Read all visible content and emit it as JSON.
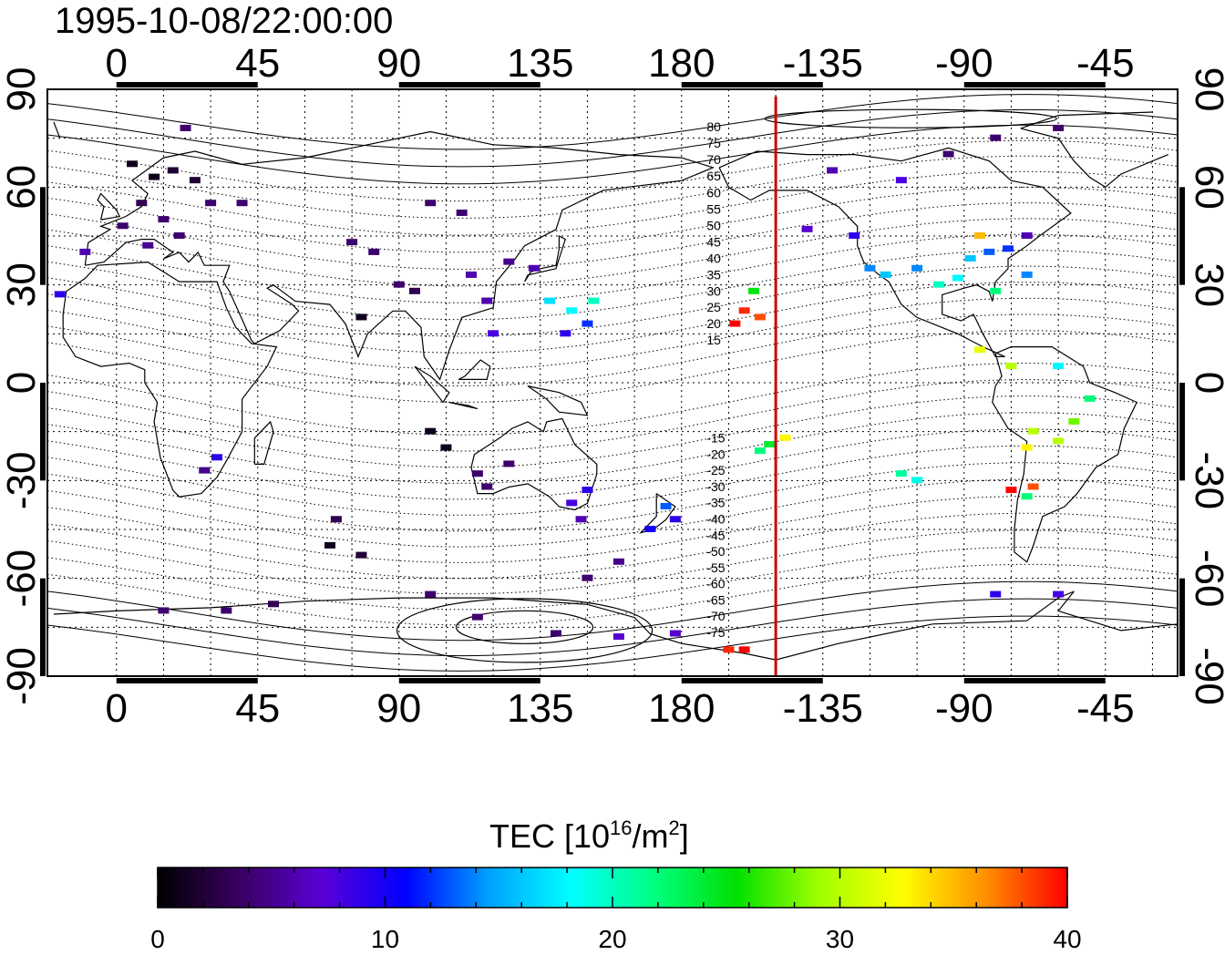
{
  "title": "1995-10-08/22:00:00",
  "axes": {
    "x_tick_labels": [
      "0",
      "45",
      "90",
      "135",
      "180",
      "-135",
      "-90",
      "-45"
    ],
    "y_tick_labels": [
      "90",
      "60",
      "30",
      "0",
      "-30",
      "-60",
      "-90"
    ],
    "lon_range": [
      -22,
      338
    ],
    "lat_range": [
      -90,
      90
    ],
    "grid": true
  },
  "magnetic_latitude_labels": [
    "80",
    "75",
    "70",
    "65",
    "60",
    "55",
    "50",
    "45",
    "40",
    "35",
    "30",
    "25",
    "20",
    "15",
    "-15",
    "-20",
    "-25",
    "-30",
    "-35",
    "-40",
    "-45",
    "-50",
    "-55",
    "-60",
    "-65",
    "-70",
    "-75"
  ],
  "colorbar": {
    "title_main": "TEC  [10",
    "title_sup1": "16",
    "title_mid": "/m",
    "title_sup2": "2",
    "title_end": "]",
    "tick_labels": [
      "0",
      "10",
      "20",
      "30",
      "40"
    ],
    "range": [
      0,
      40
    ],
    "colors": [
      "#000000",
      "#3a0062",
      "#5a00d8",
      "#0000ff",
      "#00a0ff",
      "#00ffff",
      "#00ff80",
      "#00e000",
      "#a0ff00",
      "#ffff00",
      "#ff9000",
      "#ff0000"
    ]
  },
  "marker": {
    "name": "midnight-meridian-line",
    "color": "#cc0000",
    "lon": 210
  },
  "chart_data": {
    "type": "scatter",
    "title": "1995-10-08/22:00:00",
    "xlabel": "",
    "ylabel": "",
    "xlim": [
      -22,
      338
    ],
    "ylim": [
      -90,
      90
    ],
    "points": [
      {
        "lon": 5,
        "lat": 67,
        "tec": 1
      },
      {
        "lon": 12,
        "lat": 63,
        "tec": 1
      },
      {
        "lon": 18,
        "lat": 65,
        "tec": 2
      },
      {
        "lon": 25,
        "lat": 62,
        "tec": 2
      },
      {
        "lon": 8,
        "lat": 55,
        "tec": 3
      },
      {
        "lon": 15,
        "lat": 50,
        "tec": 4
      },
      {
        "lon": 2,
        "lat": 48,
        "tec": 4
      },
      {
        "lon": 20,
        "lat": 45,
        "tec": 4
      },
      {
        "lon": -10,
        "lat": 40,
        "tec": 6
      },
      {
        "lon": 10,
        "lat": 42,
        "tec": 5
      },
      {
        "lon": 30,
        "lat": 55,
        "tec": 4
      },
      {
        "lon": 40,
        "lat": 55,
        "tec": 4
      },
      {
        "lon": 22,
        "lat": 78,
        "tec": 4
      },
      {
        "lon": -18,
        "lat": 27,
        "tec": 9
      },
      {
        "lon": 75,
        "lat": 43,
        "tec": 4
      },
      {
        "lon": 82,
        "lat": 40,
        "tec": 4
      },
      {
        "lon": 90,
        "lat": 30,
        "tec": 4
      },
      {
        "lon": 78,
        "lat": 20,
        "tec": 1
      },
      {
        "lon": 100,
        "lat": 55,
        "tec": 4
      },
      {
        "lon": 110,
        "lat": 52,
        "tec": 4
      },
      {
        "lon": 125,
        "lat": 37,
        "tec": 5
      },
      {
        "lon": 133,
        "lat": 35,
        "tec": 6
      },
      {
        "lon": 118,
        "lat": 25,
        "tec": 6
      },
      {
        "lon": 120,
        "lat": 15,
        "tec": 8
      },
      {
        "lon": 138,
        "lat": 25,
        "tec": 17
      },
      {
        "lon": 145,
        "lat": 22,
        "tec": 18
      },
      {
        "lon": 152,
        "lat": 25,
        "tec": 20
      },
      {
        "lon": 143,
        "lat": 15,
        "tec": 9
      },
      {
        "lon": 150,
        "lat": 18,
        "tec": 12
      },
      {
        "lon": 113,
        "lat": 33,
        "tec": 6
      },
      {
        "lon": 95,
        "lat": 28,
        "tec": 3
      },
      {
        "lon": 100,
        "lat": -15,
        "tec": 1
      },
      {
        "lon": 105,
        "lat": -20,
        "tec": 1
      },
      {
        "lon": 115,
        "lat": -28,
        "tec": 4
      },
      {
        "lon": 118,
        "lat": -32,
        "tec": 4
      },
      {
        "lon": 125,
        "lat": -25,
        "tec": 4
      },
      {
        "lon": 145,
        "lat": -37,
        "tec": 8
      },
      {
        "lon": 150,
        "lat": -33,
        "tec": 9
      },
      {
        "lon": 148,
        "lat": -42,
        "tec": 6
      },
      {
        "lon": 175,
        "lat": -38,
        "tec": 13
      },
      {
        "lon": 170,
        "lat": -45,
        "tec": 10
      },
      {
        "lon": 178,
        "lat": -42,
        "tec": 9
      },
      {
        "lon": 160,
        "lat": -55,
        "tec": 5
      },
      {
        "lon": 150,
        "lat": -60,
        "tec": 4
      },
      {
        "lon": 28,
        "lat": -27,
        "tec": 5
      },
      {
        "lon": 32,
        "lat": -23,
        "tec": 9
      },
      {
        "lon": 68,
        "lat": -50,
        "tec": 1
      },
      {
        "lon": 78,
        "lat": -53,
        "tec": 2
      },
      {
        "lon": 70,
        "lat": -42,
        "tec": 3
      },
      {
        "lon": 15,
        "lat": -70,
        "tec": 4
      },
      {
        "lon": 35,
        "lat": -70,
        "tec": 4
      },
      {
        "lon": 50,
        "lat": -68,
        "tec": 3
      },
      {
        "lon": 100,
        "lat": -65,
        "tec": 4
      },
      {
        "lon": 115,
        "lat": -72,
        "tec": 4
      },
      {
        "lon": 140,
        "lat": -77,
        "tec": 4
      },
      {
        "lon": 160,
        "lat": -78,
        "tec": 7
      },
      {
        "lon": 178,
        "lat": -77,
        "tec": 7
      },
      {
        "lon": 195,
        "lat": -82,
        "tec": 39
      },
      {
        "lon": 200,
        "lat": -82,
        "tec": 40
      },
      {
        "lon": 200,
        "lat": 22,
        "tec": 39
      },
      {
        "lon": 197,
        "lat": 18,
        "tec": 40
      },
      {
        "lon": 205,
        "lat": 20,
        "tec": 38
      },
      {
        "lon": 203,
        "lat": 28,
        "tec": 25
      },
      {
        "lon": 208,
        "lat": -19,
        "tec": 24
      },
      {
        "lon": 213,
        "lat": -17,
        "tec": 33
      },
      {
        "lon": 205,
        "lat": -21,
        "tec": 22
      },
      {
        "lon": 220,
        "lat": 47,
        "tec": 7
      },
      {
        "lon": 228,
        "lat": 65,
        "tec": 6
      },
      {
        "lon": 235,
        "lat": 45,
        "tec": 9
      },
      {
        "lon": 240,
        "lat": 35,
        "tec": 14
      },
      {
        "lon": 245,
        "lat": 33,
        "tec": 16
      },
      {
        "lon": 255,
        "lat": 35,
        "tec": 14
      },
      {
        "lon": 262,
        "lat": 30,
        "tec": 20
      },
      {
        "lon": 268,
        "lat": 32,
        "tec": 18
      },
      {
        "lon": 272,
        "lat": 38,
        "tec": 16
      },
      {
        "lon": 278,
        "lat": 40,
        "tec": 13
      },
      {
        "lon": 284,
        "lat": 41,
        "tec": 12
      },
      {
        "lon": 275,
        "lat": 45,
        "tec": 35
      },
      {
        "lon": 280,
        "lat": 28,
        "tec": 22
      },
      {
        "lon": 290,
        "lat": 45,
        "tec": 6
      },
      {
        "lon": 290,
        "lat": 33,
        "tec": 14
      },
      {
        "lon": 275,
        "lat": 10,
        "tec": 32
      },
      {
        "lon": 285,
        "lat": 5,
        "tec": 30
      },
      {
        "lon": 300,
        "lat": 5,
        "tec": 18
      },
      {
        "lon": 310,
        "lat": -5,
        "tec": 22
      },
      {
        "lon": 305,
        "lat": -12,
        "tec": 28
      },
      {
        "lon": 300,
        "lat": -18,
        "tec": 30
      },
      {
        "lon": 292,
        "lat": -15,
        "tec": 30
      },
      {
        "lon": 290,
        "lat": -20,
        "tec": 33
      },
      {
        "lon": 292,
        "lat": -32,
        "tec": 38
      },
      {
        "lon": 285,
        "lat": -33,
        "tec": 40
      },
      {
        "lon": 290,
        "lat": -35,
        "tec": 22
      },
      {
        "lon": 250,
        "lat": -28,
        "tec": 21
      },
      {
        "lon": 255,
        "lat": -30,
        "tec": 19
      },
      {
        "lon": 280,
        "lat": -65,
        "tec": 9
      },
      {
        "lon": 300,
        "lat": -65,
        "tec": 8
      },
      {
        "lon": 265,
        "lat": 70,
        "tec": 4
      },
      {
        "lon": 280,
        "lat": 75,
        "tec": 4
      },
      {
        "lon": 300,
        "lat": 78,
        "tec": 4
      },
      {
        "lon": 250,
        "lat": 62,
        "tec": 8
      }
    ]
  }
}
